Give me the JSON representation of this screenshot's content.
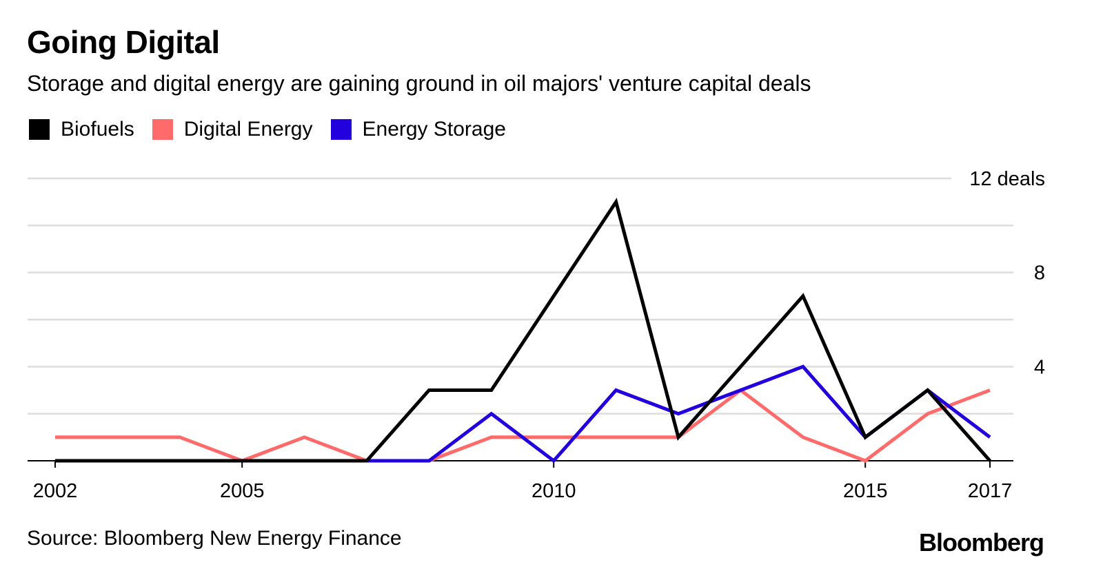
{
  "chart_data": {
    "type": "line",
    "title": "Going Digital",
    "subtitle": "Storage and digital energy are gaining ground in oil majors' venture capital deals",
    "x": [
      2002,
      2003,
      2004,
      2005,
      2006,
      2007,
      2008,
      2009,
      2010,
      2011,
      2012,
      2013,
      2014,
      2015,
      2016,
      2017
    ],
    "x_ticks": [
      {
        "value": 2002,
        "label": "2002"
      },
      {
        "value": 2005,
        "label": "2005"
      },
      {
        "value": 2010,
        "label": "2010"
      },
      {
        "value": 2015,
        "label": "2015"
      },
      {
        "value": 2017,
        "label": "2017"
      }
    ],
    "y_ticks": [
      {
        "value": 4,
        "label": "4"
      },
      {
        "value": 8,
        "label": "8"
      },
      {
        "value": 12,
        "label": "12 deals"
      }
    ],
    "ylim": [
      0,
      12
    ],
    "grid": true,
    "legend_position": "top-left",
    "series": [
      {
        "name": "Biofuels",
        "color": "#000000",
        "values": [
          0,
          0,
          0,
          0,
          0,
          0,
          3,
          3,
          7,
          11,
          1,
          4,
          7,
          1,
          3,
          0
        ]
      },
      {
        "name": "Digital Energy",
        "color": "#ff6b6b",
        "values": [
          1,
          1,
          1,
          0,
          1,
          0,
          0,
          1,
          1,
          1,
          1,
          3,
          1,
          0,
          2,
          3
        ]
      },
      {
        "name": "Energy Storage",
        "color": "#2200dd",
        "values": [
          0,
          0,
          0,
          0,
          0,
          0,
          0,
          2,
          0,
          3,
          2,
          3,
          4,
          1,
          3,
          1
        ]
      }
    ]
  },
  "footer": {
    "source": "Source: Bloomberg New Energy Finance",
    "brand": "Bloomberg"
  }
}
